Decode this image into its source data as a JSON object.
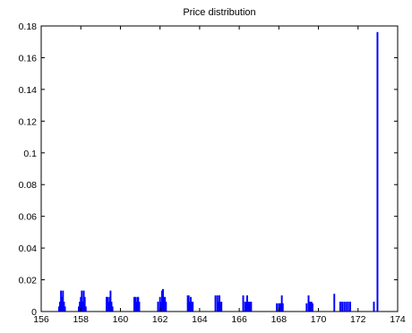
{
  "chart_data": {
    "type": "bar",
    "title": "Price distribution",
    "xlabel": "",
    "ylabel": "",
    "xlim": [
      156,
      174
    ],
    "ylim": [
      0,
      0.18
    ],
    "x_ticks": [
      156,
      158,
      160,
      162,
      164,
      166,
      168,
      170,
      172,
      174
    ],
    "y_ticks": [
      0,
      0.02,
      0.04,
      0.06,
      0.08,
      0.1,
      0.12,
      0.14,
      0.16,
      0.18
    ],
    "x_tick_labels": [
      "156",
      "158",
      "160",
      "162",
      "164",
      "166",
      "168",
      "170",
      "172",
      "174"
    ],
    "y_tick_labels": [
      "0",
      "0.02",
      "0.04",
      "0.06",
      "0.08",
      "0.1",
      "0.12",
      "0.14",
      "0.16",
      "0.18"
    ],
    "grid": false,
    "bar_width": 0.06,
    "bar_color": "#0000ff",
    "x": [
      156.9,
      156.95,
      157.0,
      157.05,
      157.1,
      157.15,
      157.2,
      157.9,
      157.95,
      158.0,
      158.05,
      158.1,
      158.15,
      158.2,
      158.25,
      159.3,
      159.35,
      159.4,
      159.45,
      159.5,
      159.55,
      159.6,
      160.7,
      160.75,
      160.8,
      160.85,
      160.9,
      160.95,
      161.9,
      162.0,
      162.05,
      162.1,
      162.15,
      162.2,
      162.25,
      162.3,
      163.4,
      163.45,
      163.5,
      163.55,
      163.6,
      163.65,
      164.8,
      164.9,
      164.95,
      165.0,
      165.05,
      165.1,
      166.2,
      166.3,
      166.35,
      166.4,
      166.45,
      166.5,
      166.55,
      166.6,
      167.9,
      168.0,
      168.05,
      168.1,
      168.15,
      168.2,
      169.4,
      169.5,
      169.55,
      169.6,
      169.65,
      169.7,
      170.8,
      171.1,
      171.2,
      171.3,
      171.4,
      171.5,
      171.6,
      172.8,
      172.98
    ],
    "values": [
      0.003,
      0.006,
      0.013,
      0.009,
      0.013,
      0.006,
      0.003,
      0.003,
      0.006,
      0.009,
      0.013,
      0.006,
      0.013,
      0.009,
      0.003,
      0.009,
      0.009,
      0.006,
      0.009,
      0.013,
      0.006,
      0.003,
      0.009,
      0.009,
      0.006,
      0.009,
      0.009,
      0.006,
      0.006,
      0.009,
      0.006,
      0.013,
      0.014,
      0.009,
      0.009,
      0.006,
      0.01,
      0.01,
      0.006,
      0.009,
      0.006,
      0.006,
      0.01,
      0.01,
      0.006,
      0.01,
      0.006,
      0.006,
      0.01,
      0.006,
      0.006,
      0.01,
      0.006,
      0.006,
      0.006,
      0.006,
      0.005,
      0.005,
      0.005,
      0.005,
      0.01,
      0.005,
      0.005,
      0.01,
      0.006,
      0.006,
      0.006,
      0.005,
      0.011,
      0.006,
      0.006,
      0.006,
      0.006,
      0.006,
      0.006,
      0.006,
      0.176
    ]
  }
}
